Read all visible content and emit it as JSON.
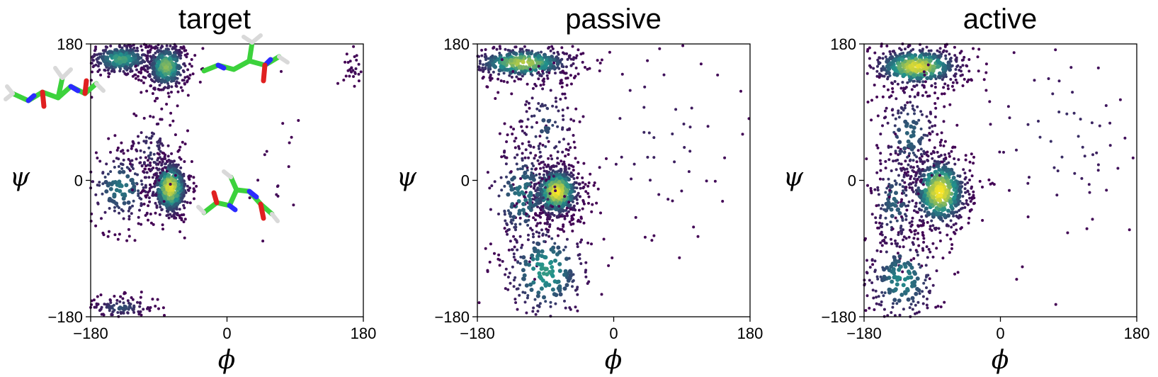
{
  "chart_data": [
    {
      "type": "scatter",
      "title": "target",
      "xlabel": "ϕ",
      "ylabel": "ψ",
      "xlim": [
        -180,
        180
      ],
      "ylim": [
        -180,
        180
      ],
      "xticks": [
        "−180",
        "0",
        "180"
      ],
      "yticks": [
        "−180",
        "0",
        "180"
      ],
      "grid": false,
      "color_scale": "viridis density",
      "clusters": [
        {
          "center": [
            -140,
            160
          ],
          "spread": [
            25,
            12
          ],
          "weight": 0.18
        },
        {
          "center": [
            -80,
            150
          ],
          "spread": [
            16,
            18
          ],
          "weight": 0.22
        },
        {
          "center": [
            -75,
            -10
          ],
          "spread": [
            14,
            22
          ],
          "weight": 0.28
        },
        {
          "center": [
            -140,
            -10
          ],
          "spread": [
            28,
            30
          ],
          "weight": 0.12
        },
        {
          "center": [
            -140,
            -168
          ],
          "spread": [
            25,
            8
          ],
          "weight": 0.08
        },
        {
          "center": [
            -100,
            40
          ],
          "spread": [
            18,
            30
          ],
          "weight": 0.06
        },
        {
          "center": [
            170,
            150
          ],
          "spread": [
            8,
            12
          ],
          "weight": 0.02
        },
        {
          "center": [
            60,
            0
          ],
          "spread": [
            20,
            60
          ],
          "weight": 0.01
        }
      ],
      "insets": [
        "molecule-stick-model-extended",
        "molecule-stick-model-beta",
        "molecule-stick-model-alpha"
      ]
    },
    {
      "type": "scatter",
      "title": "passive",
      "xlabel": "ϕ",
      "ylabel": "ψ",
      "xlim": [
        -180,
        180
      ],
      "ylim": [
        -180,
        180
      ],
      "xticks": [
        "−180",
        "0",
        "180"
      ],
      "yticks": [
        "−180",
        "0",
        "180"
      ],
      "grid": false,
      "color_scale": "viridis density",
      "clusters": [
        {
          "center": [
            -120,
            155
          ],
          "spread": [
            40,
            12
          ],
          "weight": 0.25
        },
        {
          "center": [
            -75,
            -15
          ],
          "spread": [
            18,
            20
          ],
          "weight": 0.35
        },
        {
          "center": [
            -120,
            -20
          ],
          "spread": [
            30,
            45
          ],
          "weight": 0.12
        },
        {
          "center": [
            -90,
            -120
          ],
          "spread": [
            35,
            40
          ],
          "weight": 0.16
        },
        {
          "center": [
            -90,
            70
          ],
          "spread": [
            25,
            40
          ],
          "weight": 0.08
        },
        {
          "center": [
            60,
            60
          ],
          "spread": [
            70,
            80
          ],
          "weight": 0.04
        }
      ]
    },
    {
      "type": "scatter",
      "title": "active",
      "xlabel": "ϕ",
      "ylabel": "ψ",
      "xlim": [
        -180,
        180
      ],
      "ylim": [
        -180,
        180
      ],
      "xticks": [
        "−180",
        "0",
        "180"
      ],
      "yticks": [
        "−180",
        "0",
        "180"
      ],
      "grid": false,
      "color_scale": "viridis density",
      "clusters": [
        {
          "center": [
            -110,
            150
          ],
          "spread": [
            35,
            15
          ],
          "weight": 0.28
        },
        {
          "center": [
            -80,
            -15
          ],
          "spread": [
            22,
            28
          ],
          "weight": 0.33
        },
        {
          "center": [
            -140,
            -30
          ],
          "spread": [
            20,
            40
          ],
          "weight": 0.1
        },
        {
          "center": [
            -130,
            -130
          ],
          "spread": [
            30,
            35
          ],
          "weight": 0.14
        },
        {
          "center": [
            -120,
            60
          ],
          "spread": [
            25,
            40
          ],
          "weight": 0.1
        },
        {
          "center": [
            80,
            60
          ],
          "spread": [
            70,
            80
          ],
          "weight": 0.05
        }
      ]
    }
  ],
  "colors": {
    "low": "#440154",
    "mid": "#21918c",
    "high": "#fde725",
    "carbon": "#3cd23c",
    "nitrogen": "#2b2bff",
    "oxygen": "#e02020",
    "hydrogen": "#d9d9d9"
  }
}
